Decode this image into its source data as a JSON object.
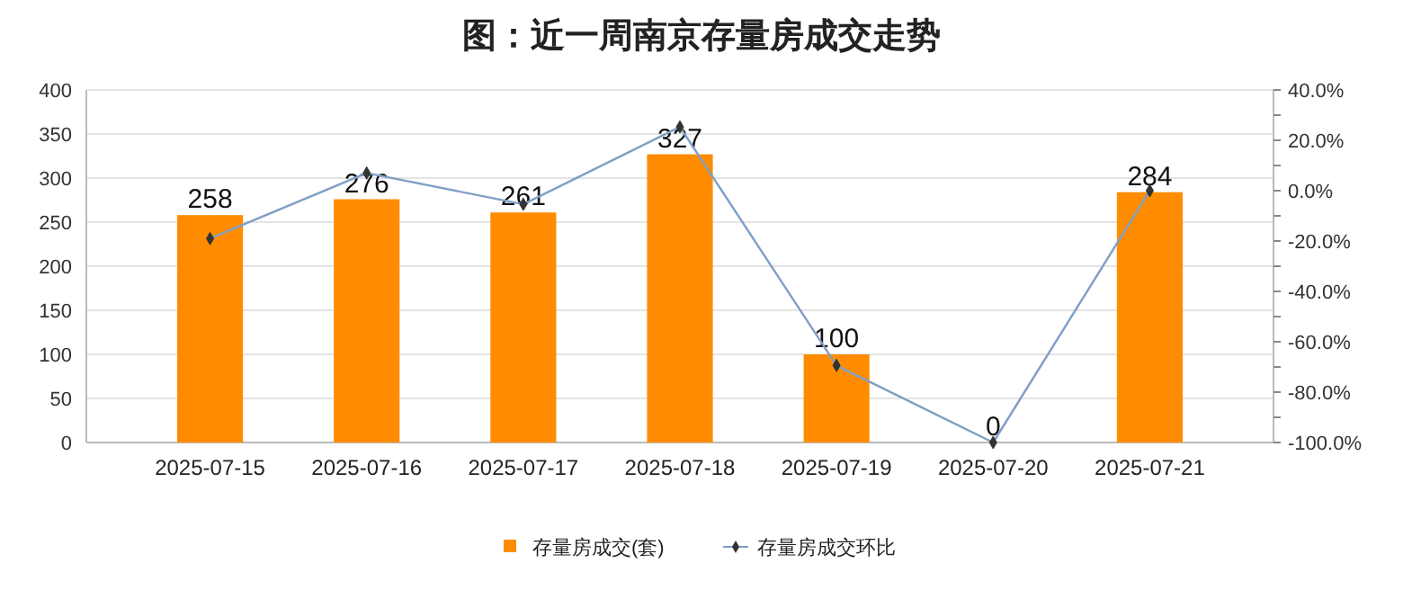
{
  "chart_data": {
    "type": "bar",
    "title": "图：近一周南京存量房成交走势",
    "categories": [
      "2025-07-15",
      "2025-07-16",
      "2025-07-17",
      "2025-07-18",
      "2025-07-19",
      "2025-07-20",
      "2025-07-21"
    ],
    "series": [
      {
        "name": "存量房成交(套)",
        "color": "#ff8c00",
        "values": [
          258,
          276,
          261,
          327,
          100,
          0,
          284
        ],
        "value_labels": [
          "258",
          "276",
          "261",
          "327",
          "100",
          "0",
          "284"
        ]
      },
      {
        "name": "存量房成交环比",
        "type": "line",
        "axis": "y2",
        "color": "#7f9fc6",
        "marker": "diamond",
        "values": [
          -19,
          7,
          -5.4,
          25.3,
          -69.4,
          -100,
          0
        ]
      }
    ],
    "ylim": [
      0,
      400
    ],
    "yticks": [
      0,
      50,
      100,
      150,
      200,
      250,
      300,
      350,
      400
    ],
    "y2lim": [
      -100,
      40
    ],
    "y2ticks": [
      {
        "value": -100,
        "label": "-100.0%"
      },
      {
        "value": -90,
        "label": null
      },
      {
        "value": -80,
        "label": "-80.0%"
      },
      {
        "value": -70,
        "label": null
      },
      {
        "value": -60,
        "label": "-60.0%"
      },
      {
        "value": -50,
        "label": null
      },
      {
        "value": -40,
        "label": "-40.0%"
      },
      {
        "value": -30,
        "label": null
      },
      {
        "value": -20,
        "label": "-20.0%"
      },
      {
        "value": -10,
        "label": null
      },
      {
        "value": 0,
        "label": "0.0%"
      },
      {
        "value": 10,
        "label": null
      },
      {
        "value": 20,
        "label": "20.0%"
      },
      {
        "value": 30,
        "label": null
      },
      {
        "value": 40,
        "label": "40.0%"
      }
    ],
    "grid": "y",
    "legend": "bottom"
  }
}
